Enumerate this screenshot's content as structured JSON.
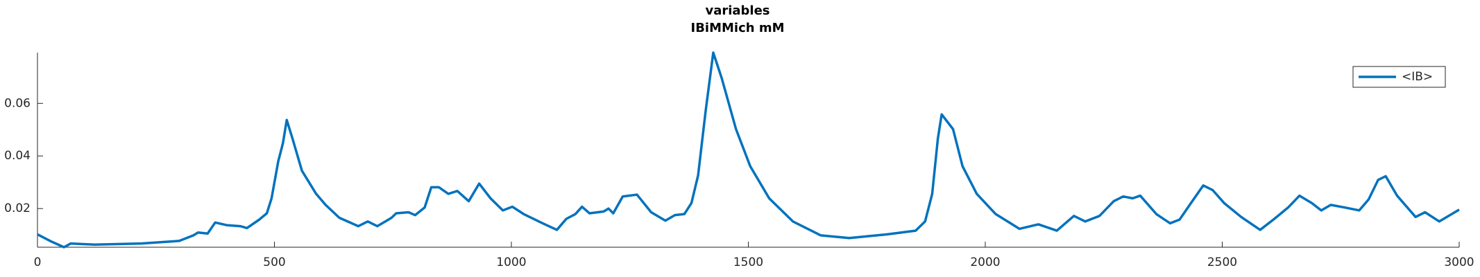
{
  "chart_data": {
    "type": "line",
    "title": "variables",
    "subtitle": "IBiMMich mM",
    "x": [
      0,
      30,
      56,
      70,
      120,
      219,
      299,
      329,
      339,
      359,
      375,
      399,
      428,
      442,
      468,
      484,
      494,
      508,
      518,
      526,
      538,
      558,
      588,
      608,
      637,
      677,
      697,
      717,
      737,
      747,
      757,
      783,
      797,
      817,
      831,
      847,
      867,
      886,
      910,
      932,
      956,
      982,
      1002,
      1026,
      1066,
      1096,
      1116,
      1135,
      1149,
      1165,
      1195,
      1205,
      1215,
      1235,
      1265,
      1295,
      1325,
      1345,
      1365,
      1380,
      1394,
      1410,
      1426,
      1444,
      1474,
      1504,
      1544,
      1594,
      1653,
      1713,
      1793,
      1853,
      1873,
      1888,
      1900,
      1908,
      1932,
      1952,
      1982,
      2022,
      2072,
      2112,
      2151,
      2187,
      2211,
      2241,
      2271,
      2291,
      2311,
      2327,
      2361,
      2390,
      2410,
      2434,
      2460,
      2480,
      2504,
      2540,
      2580,
      2610,
      2639,
      2663,
      2689,
      2709,
      2729,
      2759,
      2789,
      2809,
      2829,
      2845,
      2869,
      2908,
      2928,
      2958,
      3000
    ],
    "series": [
      {
        "name": "<IB>",
        "color": "#0072bd",
        "values": [
          0.0102,
          0.0074,
          0.0053,
          0.0067,
          0.0063,
          0.0067,
          0.0077,
          0.0098,
          0.0109,
          0.0105,
          0.0147,
          0.0137,
          0.0133,
          0.0126,
          0.0158,
          0.0182,
          0.0239,
          0.0379,
          0.0449,
          0.0537,
          0.0467,
          0.0344,
          0.0256,
          0.0214,
          0.0165,
          0.0133,
          0.0151,
          0.0133,
          0.0154,
          0.0165,
          0.0182,
          0.0186,
          0.0175,
          0.0204,
          0.0281,
          0.0281,
          0.0256,
          0.0267,
          0.0228,
          0.0295,
          0.0239,
          0.0193,
          0.0207,
          0.0179,
          0.0144,
          0.0119,
          0.0161,
          0.0179,
          0.0207,
          0.0182,
          0.0189,
          0.02,
          0.0182,
          0.0246,
          0.0253,
          0.0186,
          0.0154,
          0.0175,
          0.0179,
          0.0221,
          0.0326,
          0.0572,
          0.0793,
          0.0695,
          0.0502,
          0.0361,
          0.0239,
          0.0151,
          0.0098,
          0.0088,
          0.0102,
          0.0116,
          0.0151,
          0.0256,
          0.0467,
          0.0558,
          0.0502,
          0.0361,
          0.0256,
          0.0179,
          0.0123,
          0.014,
          0.0116,
          0.0172,
          0.0151,
          0.0172,
          0.0228,
          0.0246,
          0.0239,
          0.0249,
          0.0179,
          0.0144,
          0.0158,
          0.0221,
          0.0288,
          0.027,
          0.0221,
          0.0168,
          0.0119,
          0.0161,
          0.0204,
          0.0249,
          0.0221,
          0.0193,
          0.0214,
          0.0204,
          0.0193,
          0.0235,
          0.0309,
          0.0323,
          0.0249,
          0.0168,
          0.0186,
          0.0151,
          0.0196
        ]
      }
    ],
    "xlim": [
      0,
      3000
    ],
    "xticks": [
      0,
      500,
      1000,
      1500,
      2000,
      2500,
      3000
    ],
    "ylim": [
      0.0053,
      0.0793
    ],
    "yticks": [
      0.02,
      0.04,
      0.06
    ],
    "grid": false,
    "legend": "northeast"
  }
}
